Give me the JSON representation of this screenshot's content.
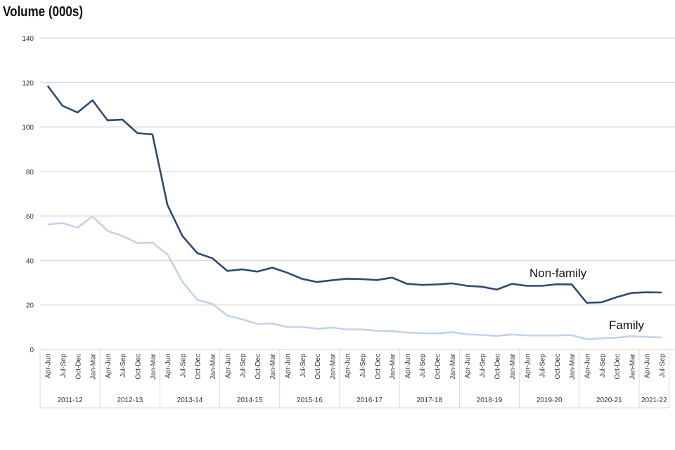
{
  "chart_data": {
    "type": "line",
    "title": "",
    "ylabel": "Volume (000s)",
    "xlabel": "",
    "ylim": [
      0,
      140
    ],
    "yticks": [
      0,
      20,
      40,
      60,
      80,
      100,
      120,
      140
    ],
    "grid": true,
    "quarters": [
      "Apr-Jun",
      "Jul-Sep",
      "Oct-Dec",
      "Jan-Mar"
    ],
    "years": [
      {
        "label": "2011-12",
        "n": 4
      },
      {
        "label": "2012-13",
        "n": 4
      },
      {
        "label": "2013-14",
        "n": 4
      },
      {
        "label": "2014-15",
        "n": 4
      },
      {
        "label": "2015-16",
        "n": 4
      },
      {
        "label": "2016-17",
        "n": 4
      },
      {
        "label": "2017-18",
        "n": 4
      },
      {
        "label": "2018-19",
        "n": 4
      },
      {
        "label": "2019-20",
        "n": 4
      },
      {
        "label": "2020-21",
        "n": 4
      },
      {
        "label": "2021-22",
        "n": 2
      }
    ],
    "series": [
      {
        "name": "Non-family",
        "color": "#2e4a72",
        "values": [
          118.5,
          109.5,
          106.5,
          112,
          103,
          103.3,
          97.2,
          96.7,
          65,
          51,
          43.3,
          41,
          35.3,
          36,
          35,
          36.8,
          34.5,
          31.7,
          30.3,
          31.1,
          31.8,
          31.6,
          31.2,
          32.3,
          29.5,
          29,
          29.2,
          29.7,
          28.6,
          28.2,
          26.9,
          29.5,
          28.6,
          28.6,
          29.3,
          29.2,
          21,
          21.2,
          23.5,
          25.4,
          25.7,
          25.6
        ]
      },
      {
        "name": "Family",
        "color": "#c2d3e8",
        "values": [
          56.2,
          56.8,
          54.8,
          59.8,
          53.3,
          51,
          47.8,
          48,
          42.7,
          30.5,
          22.3,
          20.5,
          15.2,
          13.5,
          11.5,
          11.7,
          10.1,
          10.1,
          9.3,
          9.8,
          9,
          9,
          8.4,
          8.3,
          7.6,
          7.3,
          7.2,
          7.7,
          6.8,
          6.5,
          6.1,
          6.7,
          6.3,
          6.3,
          6.3,
          6.4,
          4.6,
          5,
          5.3,
          6,
          5.6,
          5.4
        ]
      }
    ]
  }
}
